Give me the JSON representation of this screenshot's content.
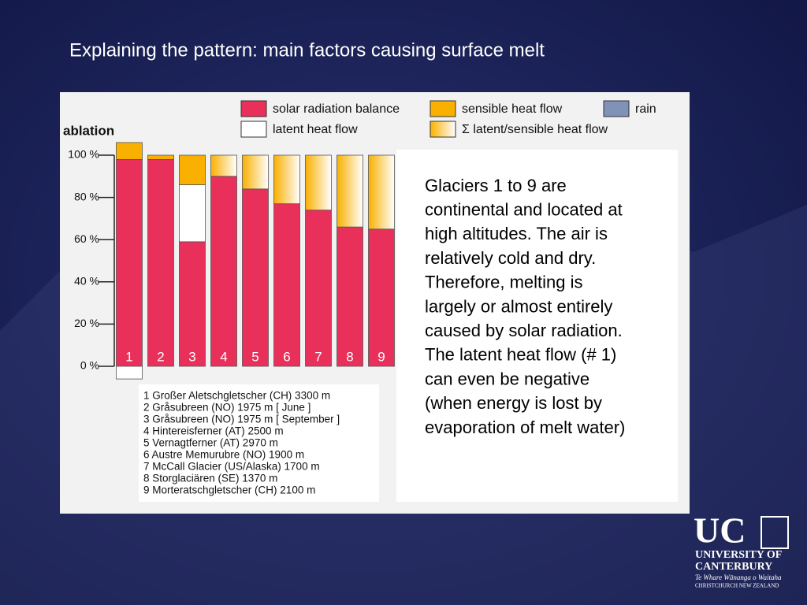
{
  "title": "Explaining the pattern: main factors causing surface melt",
  "chart_data": {
    "type": "bar",
    "stacked": true,
    "y_label": "ablation",
    "categories": [
      "1",
      "2",
      "3",
      "4",
      "5",
      "6",
      "7",
      "8",
      "9"
    ],
    "series": [
      {
        "name": "solar radiation balance",
        "color": "#e8305a",
        "values": [
          98,
          98,
          59,
          90,
          84,
          77,
          74,
          66,
          65
        ]
      },
      {
        "name": "latent heat flow",
        "color": "#ffffff",
        "values": [
          -6,
          null,
          27,
          null,
          null,
          null,
          null,
          null,
          null
        ]
      },
      {
        "name": "sensible heat flow",
        "color": "#f9b000",
        "values": [
          8,
          2,
          14,
          null,
          null,
          null,
          null,
          null,
          null
        ]
      },
      {
        "name": "Σ  latent/sensible heat flow",
        "color": "#f9b000",
        "gradient_to": "#ffffff",
        "values": [
          null,
          null,
          null,
          10,
          16,
          23,
          26,
          34,
          35
        ]
      },
      {
        "name": "rain",
        "color": "#8092b8",
        "values": [
          null,
          null,
          null,
          null,
          null,
          null,
          null,
          null,
          null
        ]
      }
    ],
    "ylim": [
      0,
      100
    ],
    "yticks": [
      {
        "value": 0,
        "label": "0 %"
      },
      {
        "value": 20,
        "label": "20 %"
      },
      {
        "value": 40,
        "label": "40 %"
      },
      {
        "value": 60,
        "label": "60 %"
      },
      {
        "value": 80,
        "label": "80 %"
      },
      {
        "value": 100,
        "label": "100 %"
      }
    ]
  },
  "glacier_list": [
    "1  Großer Aletschgletscher (CH)  3300 m",
    "2  Gråsubreen (NO)  1975 m  [ June ]",
    "3  Gråsubreen (NO)  1975 m  [ September ]",
    "4  Hintereisferner (AT)  2500 m",
    "5  Vernagtferner (AT)  2970 m",
    "6  Austre Memurubre (NO)  1900 m",
    "7  McCall Glacier (US/Alaska)  1700 m",
    "8  Storglaciären (SE)  1370 m",
    "9  Morteratschgletscher (CH)  2100 m"
  ],
  "text_box": [
    "Glaciers 1 to 9 are",
    "continental and located at",
    "high altitudes. The air is",
    "relatively cold and dry.",
    "Therefore, melting is",
    "largely or almost entirely",
    "caused by solar radiation.",
    "The latent heat flow (# 1)",
    "can even be negative",
    "(when energy is lost by",
    "evaporation of melt water)"
  ],
  "logo": {
    "mark": "UC",
    "line1": "UNIVERSITY OF",
    "line2": "CANTERBURY",
    "motto": "Te Whare Wānanga o Waitaha",
    "place": "CHRISTCHURCH NEW ZEALAND"
  }
}
